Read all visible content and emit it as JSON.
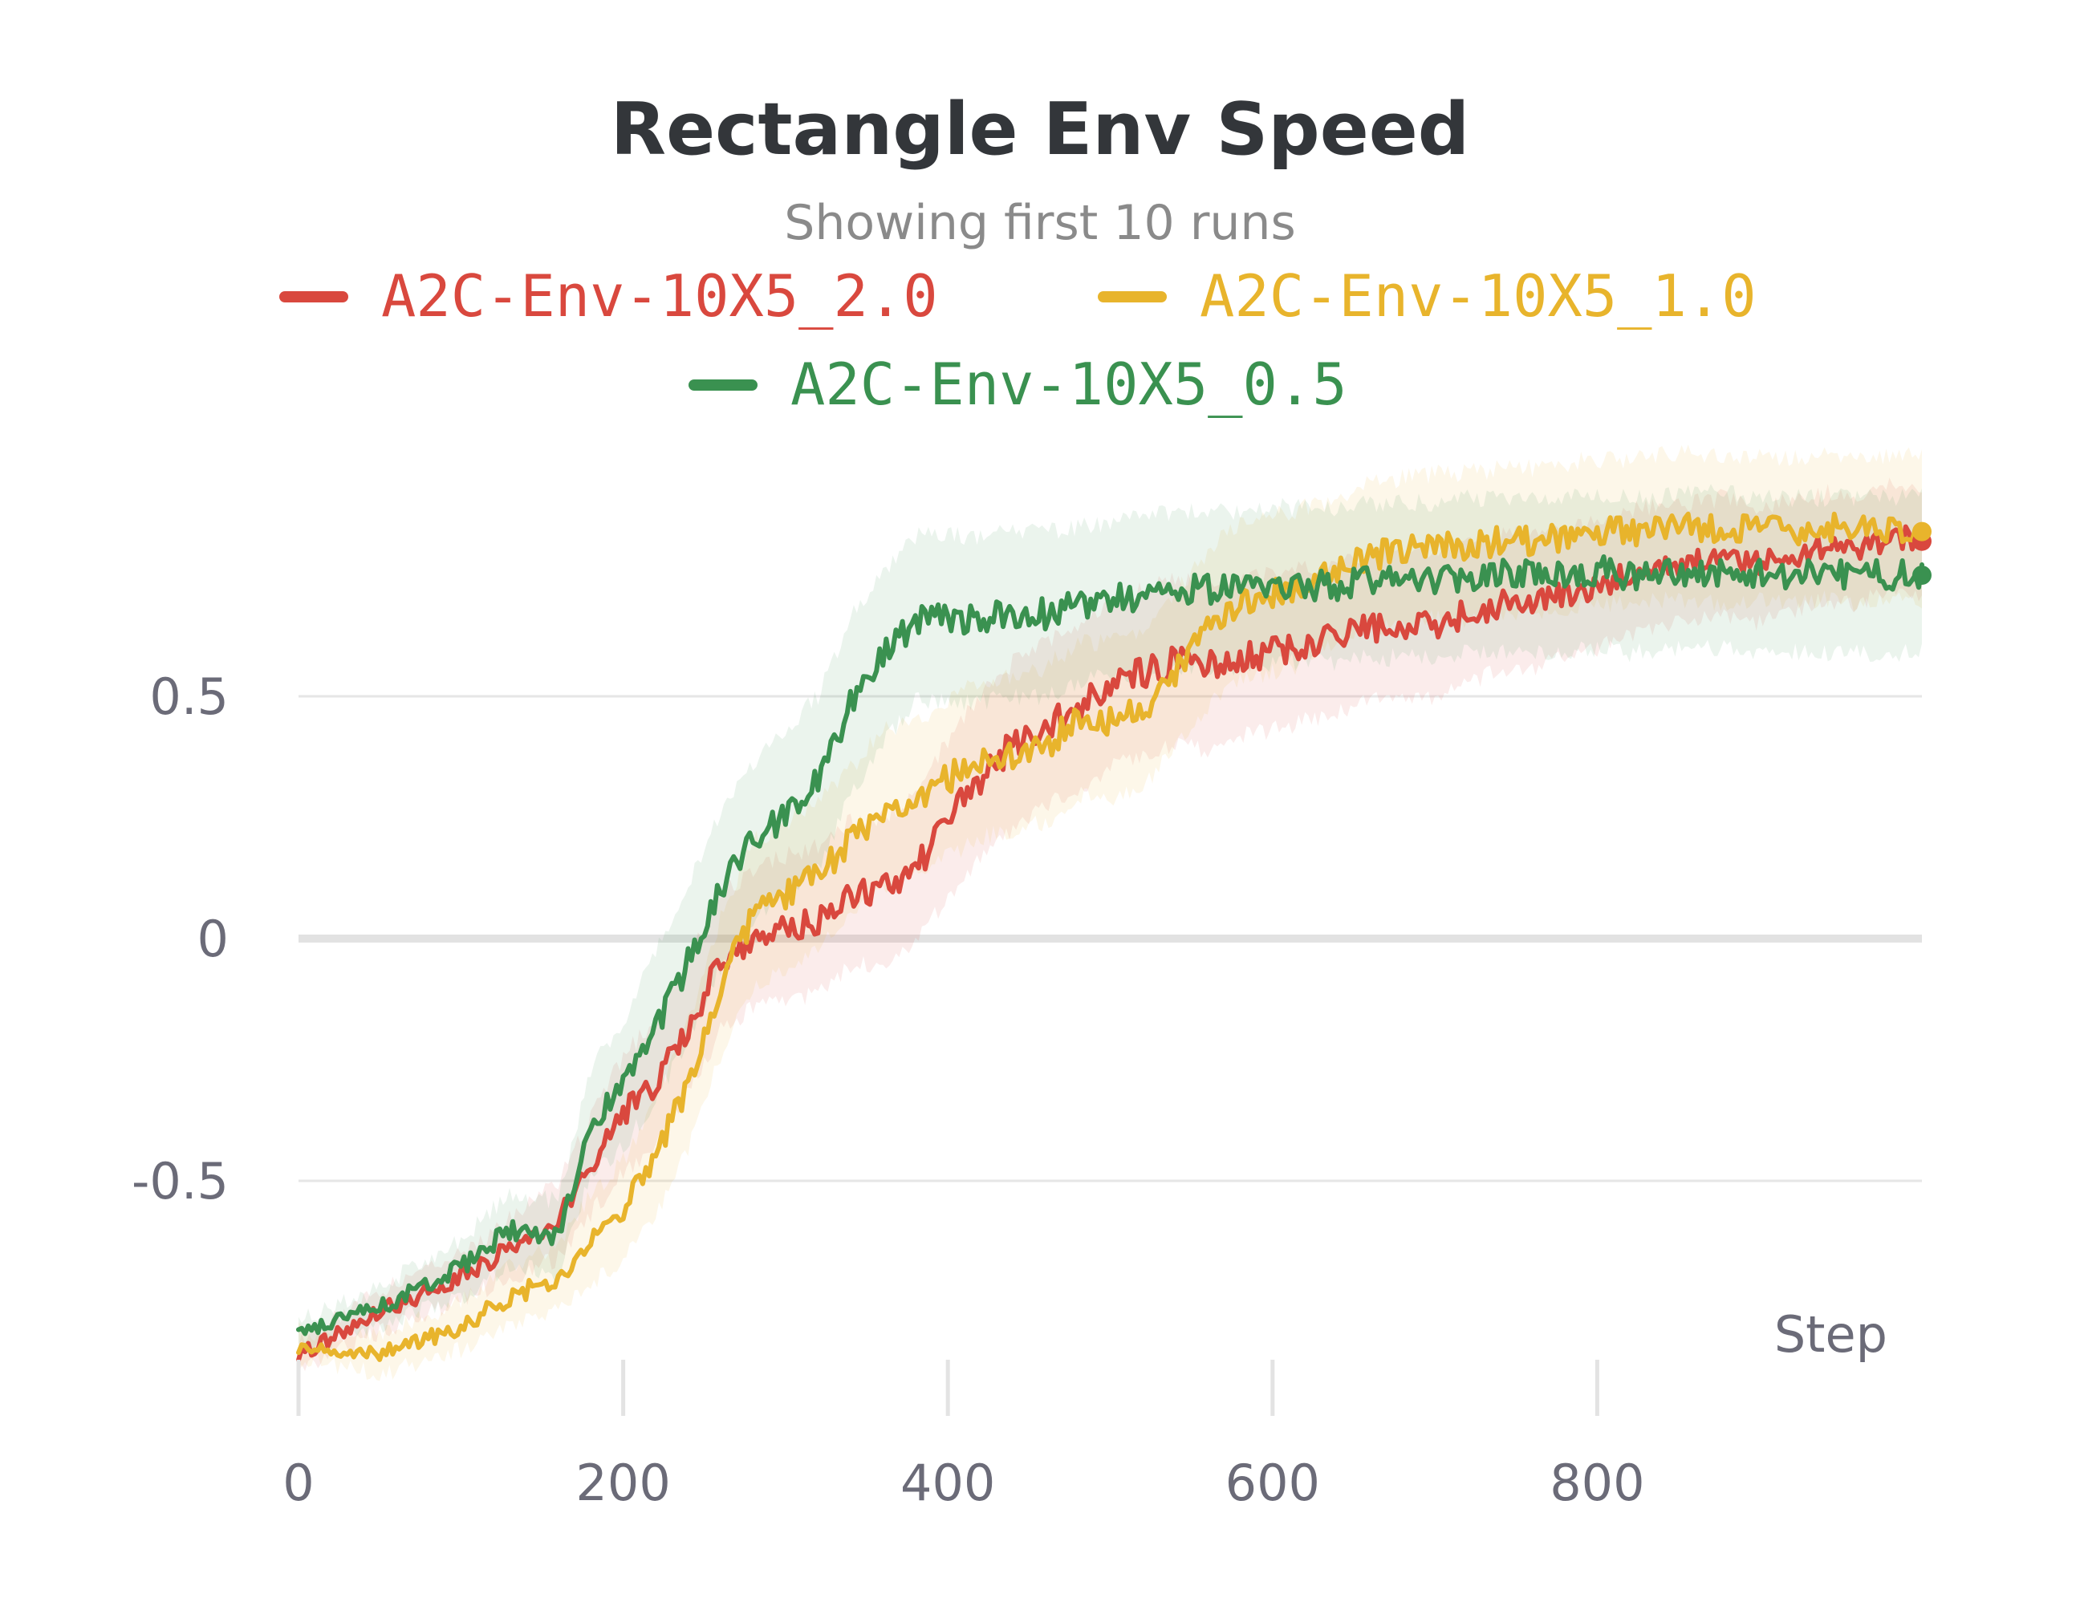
{
  "chart_data": {
    "type": "line",
    "title": "Rectangle Env Speed",
    "subtitle": "Showing first 10 runs",
    "xlabel": "Step",
    "ylabel": "",
    "xlim": [
      0,
      1000
    ],
    "ylim": [
      -0.92,
      1.0
    ],
    "x_ticks": [
      0,
      200,
      400,
      600,
      800
    ],
    "y_ticks": [
      0.5,
      0,
      -0.5
    ],
    "x_tick_labels": [
      "0",
      "200",
      "400",
      "600",
      "800"
    ],
    "y_tick_labels": [
      "0.5",
      "0",
      "-0.5"
    ],
    "grid": true,
    "legend_position": "top-center",
    "series": [
      {
        "name": "A2C-Env-10X5_2.0",
        "color": "#d9483e",
        "x": [
          0,
          50,
          100,
          130,
          160,
          180,
          200,
          220,
          240,
          260,
          280,
          300,
          320,
          340,
          360,
          380,
          400,
          420,
          440,
          460,
          480,
          500,
          520,
          540,
          560,
          580,
          600,
          620,
          640,
          660,
          680,
          700,
          720,
          740,
          760,
          780,
          800,
          820,
          840,
          860,
          880,
          900,
          920,
          940,
          960,
          980,
          1000
        ],
        "values": [
          -0.86,
          -0.77,
          -0.7,
          -0.64,
          -0.58,
          -0.47,
          -0.36,
          -0.3,
          -0.18,
          -0.05,
          0.0,
          0.02,
          0.04,
          0.09,
          0.1,
          0.14,
          0.25,
          0.33,
          0.4,
          0.44,
          0.48,
          0.52,
          0.55,
          0.57,
          0.56,
          0.58,
          0.59,
          0.61,
          0.62,
          0.64,
          0.65,
          0.65,
          0.67,
          0.69,
          0.7,
          0.71,
          0.73,
          0.75,
          0.77,
          0.78,
          0.79,
          0.77,
          0.79,
          0.81,
          0.8,
          0.83,
          0.82
        ],
        "band_width": [
          0.03,
          0.04,
          0.05,
          0.06,
          0.08,
          0.1,
          0.12,
          0.13,
          0.14,
          0.14,
          0.14,
          0.15,
          0.15,
          0.15,
          0.15,
          0.15,
          0.16,
          0.17,
          0.17,
          0.17,
          0.17,
          0.17,
          0.17,
          0.17,
          0.17,
          0.16,
          0.16,
          0.16,
          0.15,
          0.15,
          0.15,
          0.15,
          0.14,
          0.14,
          0.14,
          0.13,
          0.13,
          0.13,
          0.13,
          0.12,
          0.12,
          0.12,
          0.12,
          0.11,
          0.11,
          0.11,
          0.11
        ]
      },
      {
        "name": "A2C-Env-10X5_1.0",
        "color": "#e8b42c",
        "x": [
          0,
          50,
          100,
          130,
          160,
          180,
          200,
          220,
          240,
          260,
          280,
          300,
          320,
          340,
          360,
          380,
          400,
          420,
          440,
          460,
          480,
          500,
          520,
          540,
          560,
          580,
          600,
          620,
          640,
          660,
          680,
          700,
          720,
          740,
          760,
          780,
          800,
          820,
          840,
          860,
          880,
          900,
          920,
          940,
          960,
          980,
          1000
        ],
        "values": [
          -0.84,
          -0.86,
          -0.8,
          -0.74,
          -0.7,
          -0.62,
          -0.56,
          -0.45,
          -0.3,
          -0.1,
          0.05,
          0.09,
          0.13,
          0.2,
          0.27,
          0.29,
          0.33,
          0.37,
          0.38,
          0.4,
          0.45,
          0.45,
          0.47,
          0.55,
          0.64,
          0.7,
          0.71,
          0.73,
          0.76,
          0.79,
          0.8,
          0.81,
          0.81,
          0.82,
          0.82,
          0.83,
          0.84,
          0.84,
          0.85,
          0.85,
          0.84,
          0.85,
          0.84,
          0.85,
          0.84,
          0.85,
          0.84
        ],
        "band_width": [
          0.03,
          0.04,
          0.05,
          0.06,
          0.07,
          0.09,
          0.1,
          0.12,
          0.13,
          0.14,
          0.15,
          0.15,
          0.15,
          0.15,
          0.16,
          0.16,
          0.16,
          0.16,
          0.16,
          0.16,
          0.16,
          0.16,
          0.16,
          0.16,
          0.16,
          0.16,
          0.16,
          0.16,
          0.15,
          0.15,
          0.15,
          0.15,
          0.15,
          0.15,
          0.15,
          0.15,
          0.15,
          0.15,
          0.15,
          0.15,
          0.15,
          0.15,
          0.15,
          0.15,
          0.15,
          0.15,
          0.15
        ]
      },
      {
        "name": "A2C-Env-10X5_0.5",
        "color": "#3a9150",
        "x": [
          0,
          50,
          100,
          130,
          160,
          180,
          200,
          220,
          240,
          260,
          280,
          300,
          320,
          340,
          360,
          380,
          400,
          420,
          440,
          460,
          480,
          500,
          520,
          540,
          560,
          580,
          600,
          620,
          640,
          660,
          680,
          700,
          720,
          740,
          760,
          780,
          800,
          820,
          840,
          860,
          880,
          900,
          920,
          940,
          960,
          980,
          1000
        ],
        "values": [
          -0.82,
          -0.76,
          -0.68,
          -0.6,
          -0.62,
          -0.38,
          -0.3,
          -0.18,
          -0.05,
          0.1,
          0.2,
          0.26,
          0.32,
          0.48,
          0.58,
          0.66,
          0.66,
          0.66,
          0.67,
          0.67,
          0.69,
          0.7,
          0.71,
          0.72,
          0.72,
          0.72,
          0.73,
          0.73,
          0.73,
          0.74,
          0.74,
          0.74,
          0.75,
          0.75,
          0.75,
          0.75,
          0.76,
          0.75,
          0.75,
          0.76,
          0.76,
          0.75,
          0.75,
          0.75,
          0.75,
          0.75,
          0.75
        ],
        "band_width": [
          0.03,
          0.04,
          0.06,
          0.07,
          0.08,
          0.11,
          0.13,
          0.15,
          0.16,
          0.16,
          0.16,
          0.17,
          0.18,
          0.18,
          0.18,
          0.17,
          0.17,
          0.17,
          0.17,
          0.17,
          0.16,
          0.16,
          0.16,
          0.16,
          0.16,
          0.16,
          0.16,
          0.16,
          0.16,
          0.16,
          0.16,
          0.16,
          0.16,
          0.16,
          0.16,
          0.16,
          0.16,
          0.16,
          0.16,
          0.16,
          0.16,
          0.16,
          0.16,
          0.16,
          0.16,
          0.16,
          0.16
        ]
      }
    ]
  }
}
